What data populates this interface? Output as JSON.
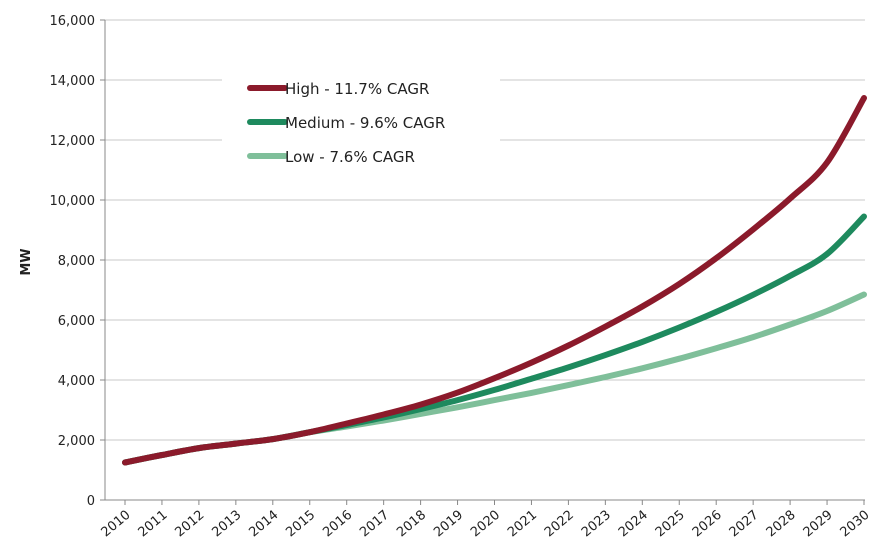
{
  "chart_data": {
    "type": "line",
    "title": "",
    "xlabel": "",
    "ylabel": "MW",
    "ylim": [
      0,
      16000
    ],
    "yticks": [
      "0",
      "2,000",
      "4,000",
      "6,000",
      "8,000",
      "10,000",
      "12,000",
      "14,000",
      "16,000"
    ],
    "ytick_values": [
      0,
      2000,
      4000,
      6000,
      8000,
      10000,
      12000,
      14000,
      16000
    ],
    "x": [
      "2010",
      "2011",
      "2012",
      "2013",
      "2014",
      "2015",
      "2016",
      "2017",
      "2018",
      "2019",
      "2020",
      "2021",
      "2022",
      "2023",
      "2024",
      "2025",
      "2026",
      "2027",
      "2028",
      "2029",
      "2030"
    ],
    "grid": "horizontal",
    "legend_position": "top-left",
    "series": [
      {
        "name": "High - 11.7% CAGR",
        "color": "#8b1a2b",
        "values": [
          1250,
          1500,
          1730,
          1880,
          2030,
          2260,
          2550,
          2850,
          3180,
          3580,
          4060,
          4580,
          5150,
          5780,
          6450,
          7200,
          8060,
          9020,
          10050,
          11250,
          13400
        ]
      },
      {
        "name": "Medium - 9.6% CAGR",
        "color": "#1e8a5e",
        "values": [
          1250,
          1500,
          1730,
          1880,
          2030,
          2260,
          2500,
          2750,
          3030,
          3330,
          3670,
          4040,
          4420,
          4830,
          5270,
          5750,
          6270,
          6840,
          7470,
          8200,
          9450
        ]
      },
      {
        "name": "Low - 7.6% CAGR",
        "color": "#7fbf9a",
        "values": [
          1250,
          1500,
          1730,
          1880,
          2030,
          2260,
          2450,
          2650,
          2870,
          3090,
          3330,
          3570,
          3830,
          4100,
          4390,
          4710,
          5060,
          5430,
          5850,
          6300,
          6850
        ]
      }
    ]
  }
}
